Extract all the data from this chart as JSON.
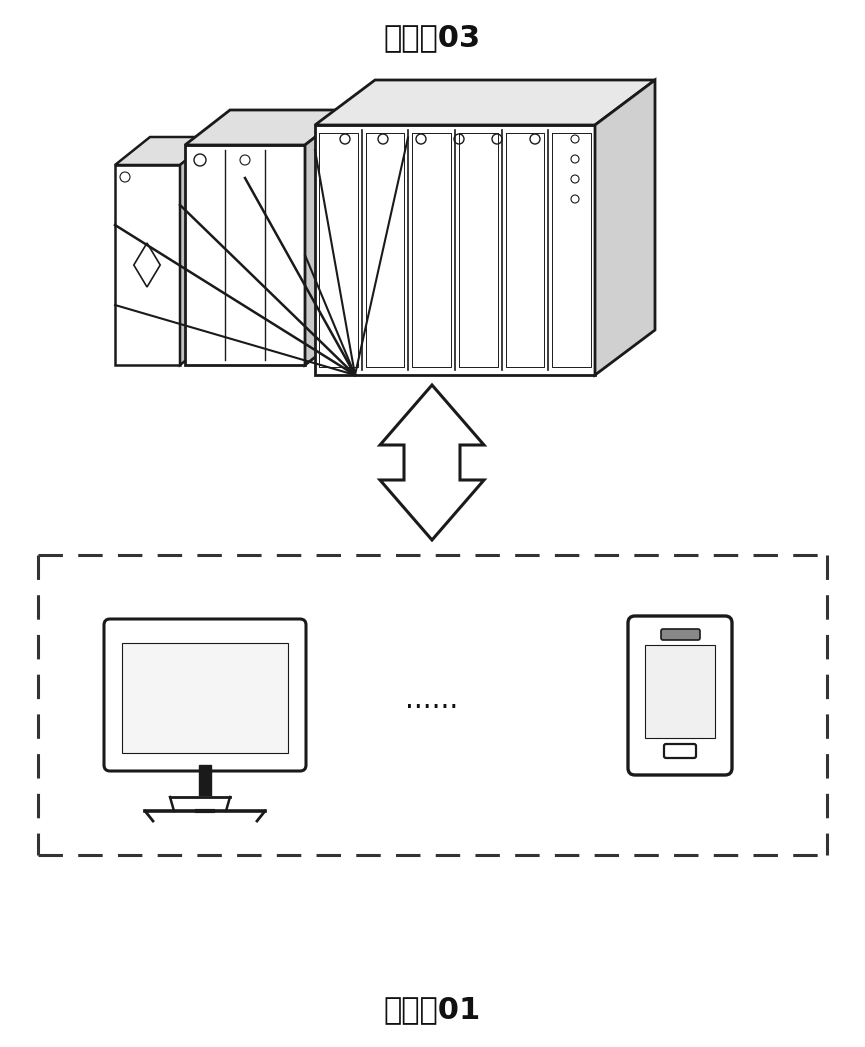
{
  "title_server": "服务器03",
  "title_client": "客户端01",
  "dots_text": "......",
  "bg_color": "#ffffff",
  "line_color": "#1a1a1a",
  "dash_box_color": "#333333",
  "text_color": "#111111",
  "font_size_title": 22,
  "font_size_dots": 20
}
